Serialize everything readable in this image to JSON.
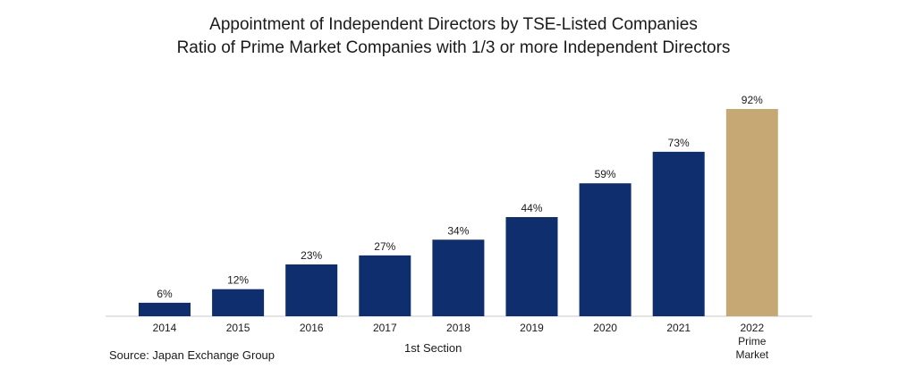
{
  "title": "Appointment of Independent Directors by TSE-Listed Companies",
  "subtitle": "Ratio of Prime Market Companies with 1/3 or more Independent Directors",
  "source": "Source: Japan Exchange Group",
  "section_label": "1st Section",
  "colors": {
    "primary": "#0e2e6d",
    "highlight": "#c6a874",
    "axis": "#c8c8c8"
  },
  "chart_data": {
    "type": "bar",
    "categories": [
      "2014",
      "2015",
      "2016",
      "2017",
      "2018",
      "2019",
      "2020",
      "2021",
      "2022"
    ],
    "category_sublabels": [
      "",
      "",
      "",
      "",
      "",
      "",
      "",
      "",
      "Prime Market"
    ],
    "values": [
      6,
      12,
      23,
      27,
      34,
      44,
      59,
      73,
      92
    ],
    "data_labels": [
      "6%",
      "12%",
      "23%",
      "27%",
      "34%",
      "44%",
      "59%",
      "73%",
      "92%"
    ],
    "highlight_index": 8,
    "ylim": [
      0,
      100
    ],
    "grid": false,
    "legend": "none"
  }
}
